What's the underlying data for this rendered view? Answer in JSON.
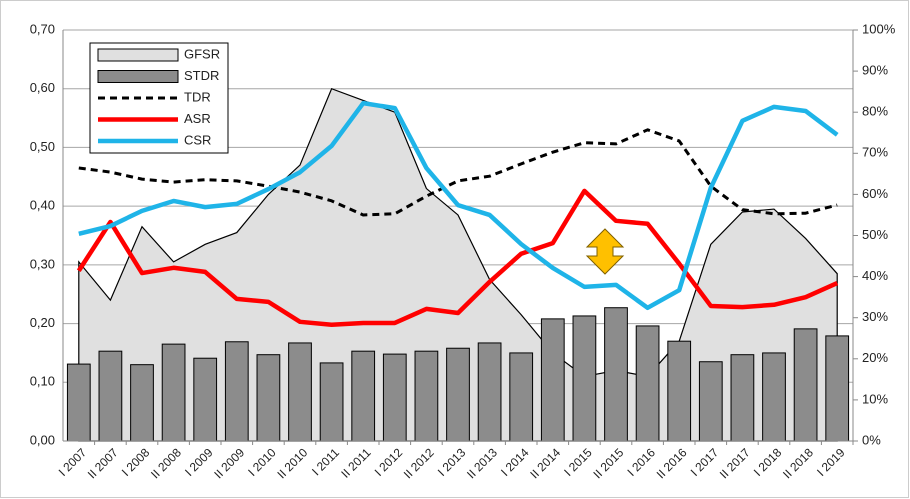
{
  "chart_data": {
    "type": "combo",
    "categories": [
      "I 2007",
      "II 2007",
      "I 2008",
      "II 2008",
      "I 2009",
      "II 2009",
      "I 2010",
      "II 2010",
      "I 2011",
      "II 2011",
      "I 2012",
      "II 2012",
      "I 2013",
      "II 2013",
      "I 2014",
      "II 2014",
      "I 2015",
      "II 2015",
      "I 2016",
      "II 2016",
      "I 2017",
      "II 2017",
      "I 2018",
      "II 2018",
      "I 2019"
    ],
    "series": [
      {
        "name": "GFSR",
        "kind": "area",
        "color": "#e0e0e0",
        "values": [
          0.305,
          0.24,
          0.365,
          0.305,
          0.335,
          0.355,
          0.42,
          0.47,
          0.6,
          0.58,
          0.56,
          0.43,
          0.385,
          0.275,
          0.215,
          0.15,
          0.11,
          0.12,
          0.11,
          0.17,
          0.335,
          0.39,
          0.395,
          0.345,
          0.285
        ]
      },
      {
        "name": "STDR",
        "kind": "bar",
        "color": "#8c8c8c",
        "values": [
          0.131,
          0.153,
          0.13,
          0.165,
          0.141,
          0.169,
          0.147,
          0.167,
          0.133,
          0.153,
          0.148,
          0.153,
          0.158,
          0.167,
          0.15,
          0.208,
          0.213,
          0.227,
          0.196,
          0.17,
          0.135,
          0.147,
          0.15,
          0.191,
          0.179
        ]
      },
      {
        "name": "TDR",
        "kind": "dashed",
        "color": "#000000",
        "values": [
          0.465,
          0.458,
          0.446,
          0.441,
          0.445,
          0.443,
          0.434,
          0.424,
          0.409,
          0.385,
          0.387,
          0.417,
          0.443,
          0.451,
          0.472,
          0.492,
          0.508,
          0.506,
          0.53,
          0.511,
          0.434,
          0.394,
          0.387,
          0.388,
          0.402
        ]
      },
      {
        "name": "ASR",
        "kind": "line",
        "color": "#ff0000",
        "values": [
          0.29,
          0.373,
          0.286,
          0.295,
          0.288,
          0.242,
          0.237,
          0.203,
          0.198,
          0.201,
          0.201,
          0.225,
          0.218,
          0.271,
          0.319,
          0.337,
          0.426,
          0.375,
          0.37,
          0.302,
          0.23,
          0.228,
          0.232,
          0.245,
          0.269
        ]
      },
      {
        "name": "CSR",
        "kind": "line",
        "axis": "y2",
        "color": "#1fb4e8",
        "values": [
          50.4,
          52.3,
          56,
          58.4,
          56.9,
          57.7,
          61.3,
          65.4,
          71.8,
          82.2,
          81,
          66.4,
          57.4,
          55,
          47.9,
          42.1,
          37.5,
          38,
          32.4,
          36.7,
          61.6,
          77.9,
          81.3,
          80.3,
          74.5
        ]
      }
    ],
    "ylim": [
      0,
      0.7
    ],
    "yticks": [
      {
        "value": 0,
        "label": "0,00"
      },
      {
        "value": 0.1,
        "label": "0,10"
      },
      {
        "value": 0.2,
        "label": "0,20"
      },
      {
        "value": 0.3,
        "label": "0,30"
      },
      {
        "value": 0.4,
        "label": "0,40"
      },
      {
        "value": 0.5,
        "label": "0,50"
      },
      {
        "value": 0.6,
        "label": "0,60"
      },
      {
        "value": 0.7,
        "label": "0,70"
      }
    ],
    "y2lim": [
      0,
      100
    ],
    "y2ticks": [
      {
        "value": 0,
        "label": "0%"
      },
      {
        "value": 10,
        "label": "10%"
      },
      {
        "value": 20,
        "label": "20%"
      },
      {
        "value": 30,
        "label": "30%"
      },
      {
        "value": 40,
        "label": "40%"
      },
      {
        "value": 50,
        "label": "50%"
      },
      {
        "value": 60,
        "label": "60%"
      },
      {
        "value": 70,
        "label": "70%"
      },
      {
        "value": 80,
        "label": "80%"
      },
      {
        "value": 90,
        "label": "90%"
      },
      {
        "value": 100,
        "label": "100%"
      }
    ],
    "grid": true,
    "legend": "top-left"
  }
}
